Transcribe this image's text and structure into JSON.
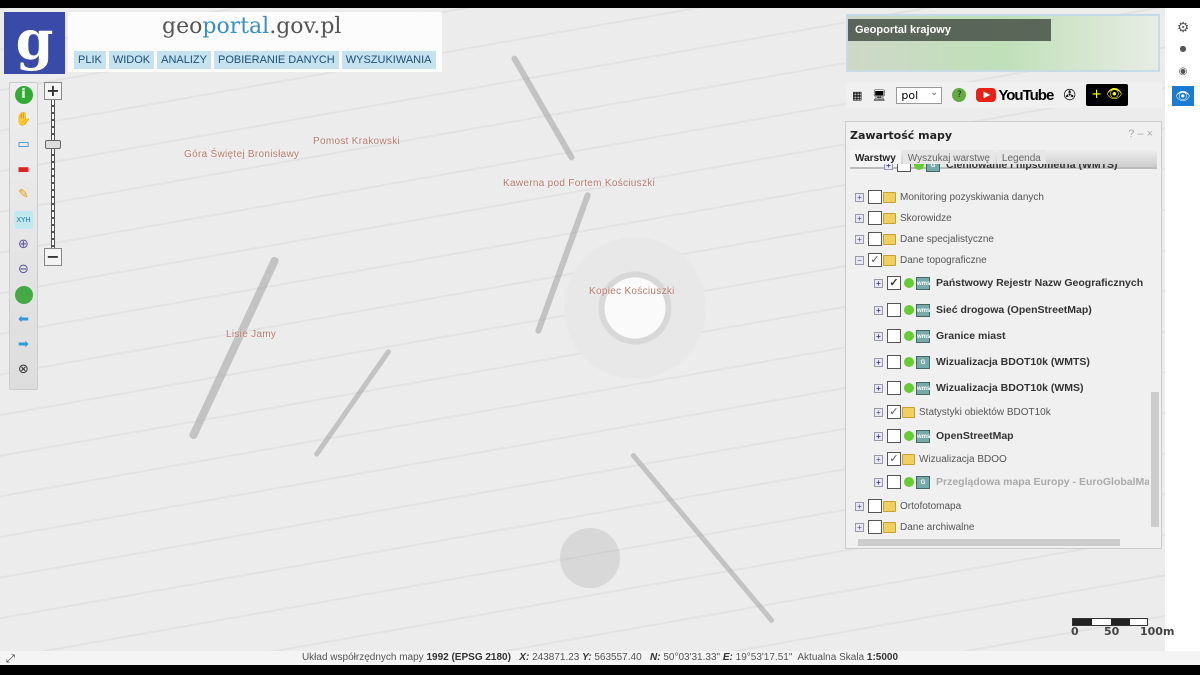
{
  "header": {
    "logo_letter": "g",
    "site_title_pre": "geo",
    "site_title_mid": "portal",
    "site_title_post": ".gov.pl",
    "menu": [
      "PLIK",
      "WIDOK",
      "ANALIZY",
      "POBIERANIE DANYCH",
      "WYSZUKIWANIA"
    ]
  },
  "toolbar": {
    "tools": [
      "info-icon",
      "pan-hand-icon",
      "select-rectangle-icon",
      "deselect-rectangle-icon",
      "pencil-icon",
      "xyh-icon",
      "zoom-in-icon",
      "zoom-out-icon",
      "globe-icon",
      "back-arrow-icon",
      "forward-arrow-icon",
      "reset-icon"
    ],
    "xyh_label": "XYH",
    "zoom_in": "+",
    "zoom_out": "−"
  },
  "map_labels": [
    "Góra Świętej Bronisławy",
    "Pomost Krakowski",
    "Kawerna pod Fortem Kościuszki",
    "Kopiec Kościuszki",
    "Lisie Jamy"
  ],
  "minimap": {
    "title": "Geoportal krajowy"
  },
  "toolbar2": {
    "language": "pol",
    "youtube": "YouTube"
  },
  "panel": {
    "title": "Zawartość mapy",
    "controls": "? – ×",
    "tabs": [
      "Warstwy",
      "Wyszukaj warstwę",
      "Legenda"
    ],
    "rows": [
      {
        "label": "Cieniowanie i hipsometria (WMTS)",
        "checked": false,
        "type": "wmts",
        "level": 1,
        "bold": true
      },
      {
        "label": "Monitoring pozyskiwania danych",
        "checked": false,
        "type": "folder",
        "level": 0
      },
      {
        "label": "Skorowidze",
        "checked": false,
        "type": "folder",
        "level": 0
      },
      {
        "label": "Dane specjalistyczne",
        "checked": false,
        "type": "folder",
        "level": 0
      },
      {
        "label": "Dane topograficzne",
        "checked": true,
        "type": "folder",
        "level": 0,
        "expanded": true
      },
      {
        "label": "Państwowy Rejestr Nazw Geograficznych",
        "checked": true,
        "type": "wms",
        "level": 1,
        "bold": true
      },
      {
        "label": "Sieć drogowa (OpenStreetMap)",
        "checked": false,
        "type": "wms",
        "level": 1,
        "bold": true
      },
      {
        "label": "Granice miast",
        "checked": false,
        "type": "wms",
        "level": 1,
        "bold": true
      },
      {
        "label": "Wizualizacja BDOT10k (WMTS)",
        "checked": false,
        "type": "wmts",
        "level": 1,
        "bold": true
      },
      {
        "label": "Wizualizacja BDOT10k (WMS)",
        "checked": false,
        "type": "wms",
        "level": 1,
        "bold": true
      },
      {
        "label": "Statystyki obiektów BDOT10k",
        "checked": true,
        "type": "folder",
        "level": 1
      },
      {
        "label": "OpenStreetMap",
        "checked": false,
        "type": "wms",
        "level": 1,
        "bold": true
      },
      {
        "label": "Wizualizacja BDOO",
        "checked": true,
        "type": "folder",
        "level": 1
      },
      {
        "label": "Przeglądowa mapa Europy - EuroGlobalMap",
        "checked": false,
        "type": "wmts",
        "level": 1,
        "bold": true,
        "gray": true
      },
      {
        "label": "Ortofotomapa",
        "checked": false,
        "type": "folder",
        "level": 0
      },
      {
        "label": "Dane archiwalne",
        "checked": false,
        "type": "folder",
        "level": 0
      }
    ]
  },
  "scalebar": {
    "labels": [
      "0",
      "50",
      "100m"
    ]
  },
  "status": {
    "crs_label": "Układ współrzędnych mapy",
    "crs_value": "1992 (EPSG 2180)",
    "x_label": "X:",
    "x": "243871.23",
    "y_label": "Y:",
    "y": "563557.40",
    "n_label": "N:",
    "n": "50°03'31.33\"",
    "e_label": "E:",
    "e": "19°53'17.51\"",
    "scale_label": "Aktualna Skala",
    "scale": "1:5000"
  }
}
